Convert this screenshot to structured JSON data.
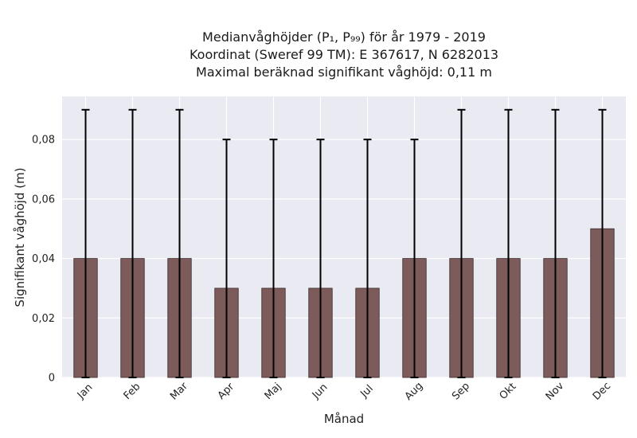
{
  "chart_data": {
    "type": "bar",
    "title": [
      "Medianvåghöjder (P₁, P₉₉) för år 1979 - 2019",
      "Koordinat (Sweref 99 TM): E 367617, N 6282013",
      "Maximal beräknad signifikant våghöjd: 0,11 m"
    ],
    "xlabel": "Månad",
    "ylabel": "Signifikant våghöjd (m)",
    "categories": [
      "Jan",
      "Feb",
      "Mar",
      "Apr",
      "Maj",
      "Jun",
      "Jul",
      "Aug",
      "Sep",
      "Okt",
      "Nov",
      "Dec"
    ],
    "values": [
      0.04,
      0.04,
      0.04,
      0.03,
      0.03,
      0.03,
      0.03,
      0.04,
      0.04,
      0.04,
      0.04,
      0.05
    ],
    "error_low": [
      0,
      0,
      0,
      0,
      0,
      0,
      0,
      0,
      0,
      0,
      0,
      0
    ],
    "error_high": [
      0.09,
      0.09,
      0.09,
      0.08,
      0.08,
      0.08,
      0.08,
      0.08,
      0.09,
      0.09,
      0.09,
      0.09
    ],
    "ylim": [
      0,
      0.0945
    ],
    "yticks": [
      0,
      0.02,
      0.04,
      0.06,
      0.08
    ],
    "ytick_labels": [
      "0",
      "0,02",
      "0,04",
      "0,06",
      "0,08"
    ],
    "grid": true,
    "colors": {
      "bar": "#7d5b5b",
      "bar_edge": "#3a2a2a",
      "plot_bg": "#eaeaf2",
      "grid": "#ffffff",
      "error": "#000000"
    }
  }
}
